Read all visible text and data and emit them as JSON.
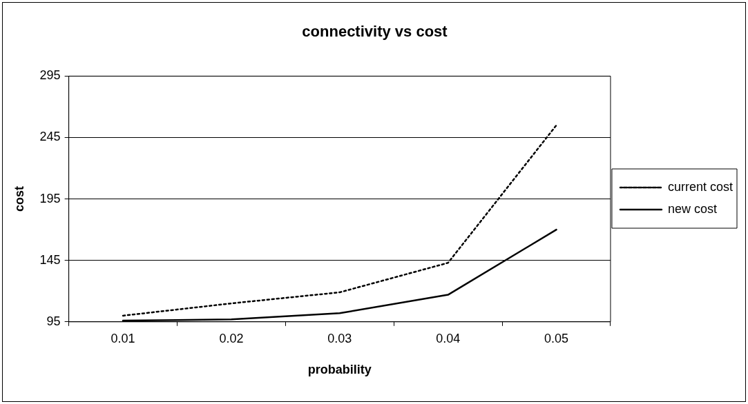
{
  "chart_data": {
    "type": "line",
    "title": "connectivity vs cost",
    "xlabel": "probability",
    "ylabel": "cost",
    "categories": [
      "0.01",
      "0.02",
      "0.03",
      "0.04",
      "0.05"
    ],
    "series": [
      {
        "name": "current cost",
        "color": "#000000",
        "line_style": "dotted",
        "values": [
          100,
          110,
          119,
          143,
          255
        ]
      },
      {
        "name": "new cost",
        "color": "#000000",
        "line_style": "solid",
        "values": [
          96,
          97,
          102,
          117,
          170
        ]
      }
    ],
    "ylim": [
      95,
      295
    ],
    "yticks": [
      95,
      145,
      195,
      245,
      295
    ],
    "grid": "y",
    "legend": "right",
    "marker": "none"
  }
}
